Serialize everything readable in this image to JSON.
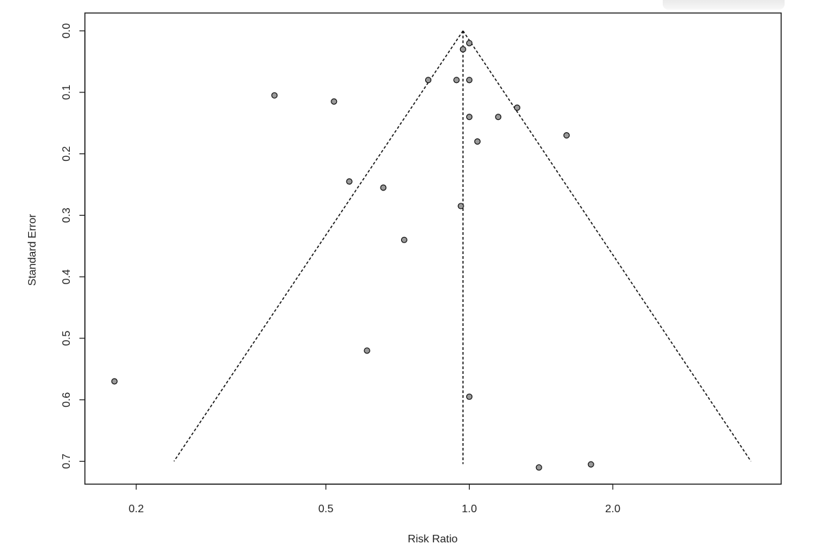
{
  "chart_data": {
    "type": "scatter",
    "title": "",
    "xlabel": "Risk Ratio",
    "ylabel": "Standard Error",
    "x_scale": "log",
    "xlim": [
      0.15,
      4.3
    ],
    "ylim": [
      0.0,
      0.7
    ],
    "y_axis_inverted": true,
    "x_ticks": [
      0.2,
      0.5,
      1.0,
      2.0
    ],
    "x_tick_labels": [
      "0.2",
      "0.5",
      "1.0",
      "2.0"
    ],
    "y_ticks": [
      0.0,
      0.1,
      0.2,
      0.3,
      0.4,
      0.5,
      0.6,
      0.7
    ],
    "y_tick_labels": [
      "0.0",
      "0.1",
      "0.2",
      "0.3",
      "0.4",
      "0.5",
      "0.6",
      "0.7"
    ],
    "grid": false,
    "legend": "none",
    "pooled_estimate": 0.97,
    "funnel": {
      "apex": {
        "x": 0.97,
        "y": 0.0
      },
      "base_se": 0.7,
      "base_left_x": 0.24,
      "base_right_x": 3.9
    },
    "points": [
      {
        "x": 1.0,
        "y": 0.02
      },
      {
        "x": 0.97,
        "y": 0.03
      },
      {
        "x": 0.82,
        "y": 0.08
      },
      {
        "x": 0.94,
        "y": 0.08
      },
      {
        "x": 1.0,
        "y": 0.08
      },
      {
        "x": 0.39,
        "y": 0.105
      },
      {
        "x": 0.52,
        "y": 0.115
      },
      {
        "x": 1.26,
        "y": 0.125
      },
      {
        "x": 1.0,
        "y": 0.14
      },
      {
        "x": 1.15,
        "y": 0.14
      },
      {
        "x": 1.6,
        "y": 0.17
      },
      {
        "x": 1.04,
        "y": 0.18
      },
      {
        "x": 0.56,
        "y": 0.245
      },
      {
        "x": 0.66,
        "y": 0.255
      },
      {
        "x": 0.96,
        "y": 0.285
      },
      {
        "x": 0.73,
        "y": 0.34
      },
      {
        "x": 0.61,
        "y": 0.52
      },
      {
        "x": 0.18,
        "y": 0.57
      },
      {
        "x": 1.0,
        "y": 0.595
      },
      {
        "x": 1.8,
        "y": 0.705
      },
      {
        "x": 1.4,
        "y": 0.71
      }
    ],
    "colors": {
      "point_fill": "#9a9a9a",
      "point_stroke": "#111111",
      "line": "#111111"
    }
  }
}
